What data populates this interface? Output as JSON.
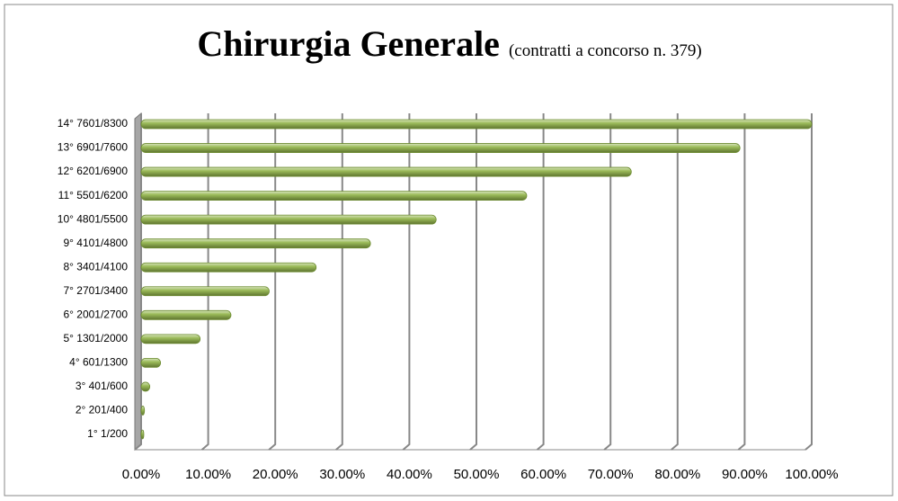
{
  "chart_data": {
    "type": "bar",
    "orientation": "horizontal",
    "title": "Chirurgia Generale",
    "subtitle": "(contratti a concorso n. 379)",
    "categories": [
      "1° 1/200",
      "2° 201/400",
      "3° 401/600",
      "4° 601/1300",
      "5° 1301/2000",
      "6° 2001/2700",
      "7° 2701/3400",
      "8° 3401/4100",
      "9° 4101/4800",
      "10° 4801/5500",
      "11° 5501/6200",
      "12° 6201/6900",
      "13° 6901/7600",
      "14° 7601/8300"
    ],
    "values": [
      0.4,
      0.5,
      1.3,
      2.9,
      8.8,
      13.4,
      19.1,
      26.1,
      34.2,
      44.0,
      57.5,
      73.1,
      89.3,
      100
    ],
    "color": "#9bbb59",
    "xlim": [
      0,
      100
    ],
    "xticks": [
      {
        "value": 0,
        "label": "0.00%"
      },
      {
        "value": 10,
        "label": "10.00%"
      },
      {
        "value": 20,
        "label": "20.00%"
      },
      {
        "value": 30,
        "label": "30.00%"
      },
      {
        "value": 40,
        "label": "40.00%"
      },
      {
        "value": 50,
        "label": "50.00%"
      },
      {
        "value": 60,
        "label": "60.00%"
      },
      {
        "value": 70,
        "label": "70.00%"
      },
      {
        "value": 80,
        "label": "80.00%"
      },
      {
        "value": 90,
        "label": "90.00%"
      },
      {
        "value": 100,
        "label": "100.00%"
      }
    ],
    "grid": true
  }
}
